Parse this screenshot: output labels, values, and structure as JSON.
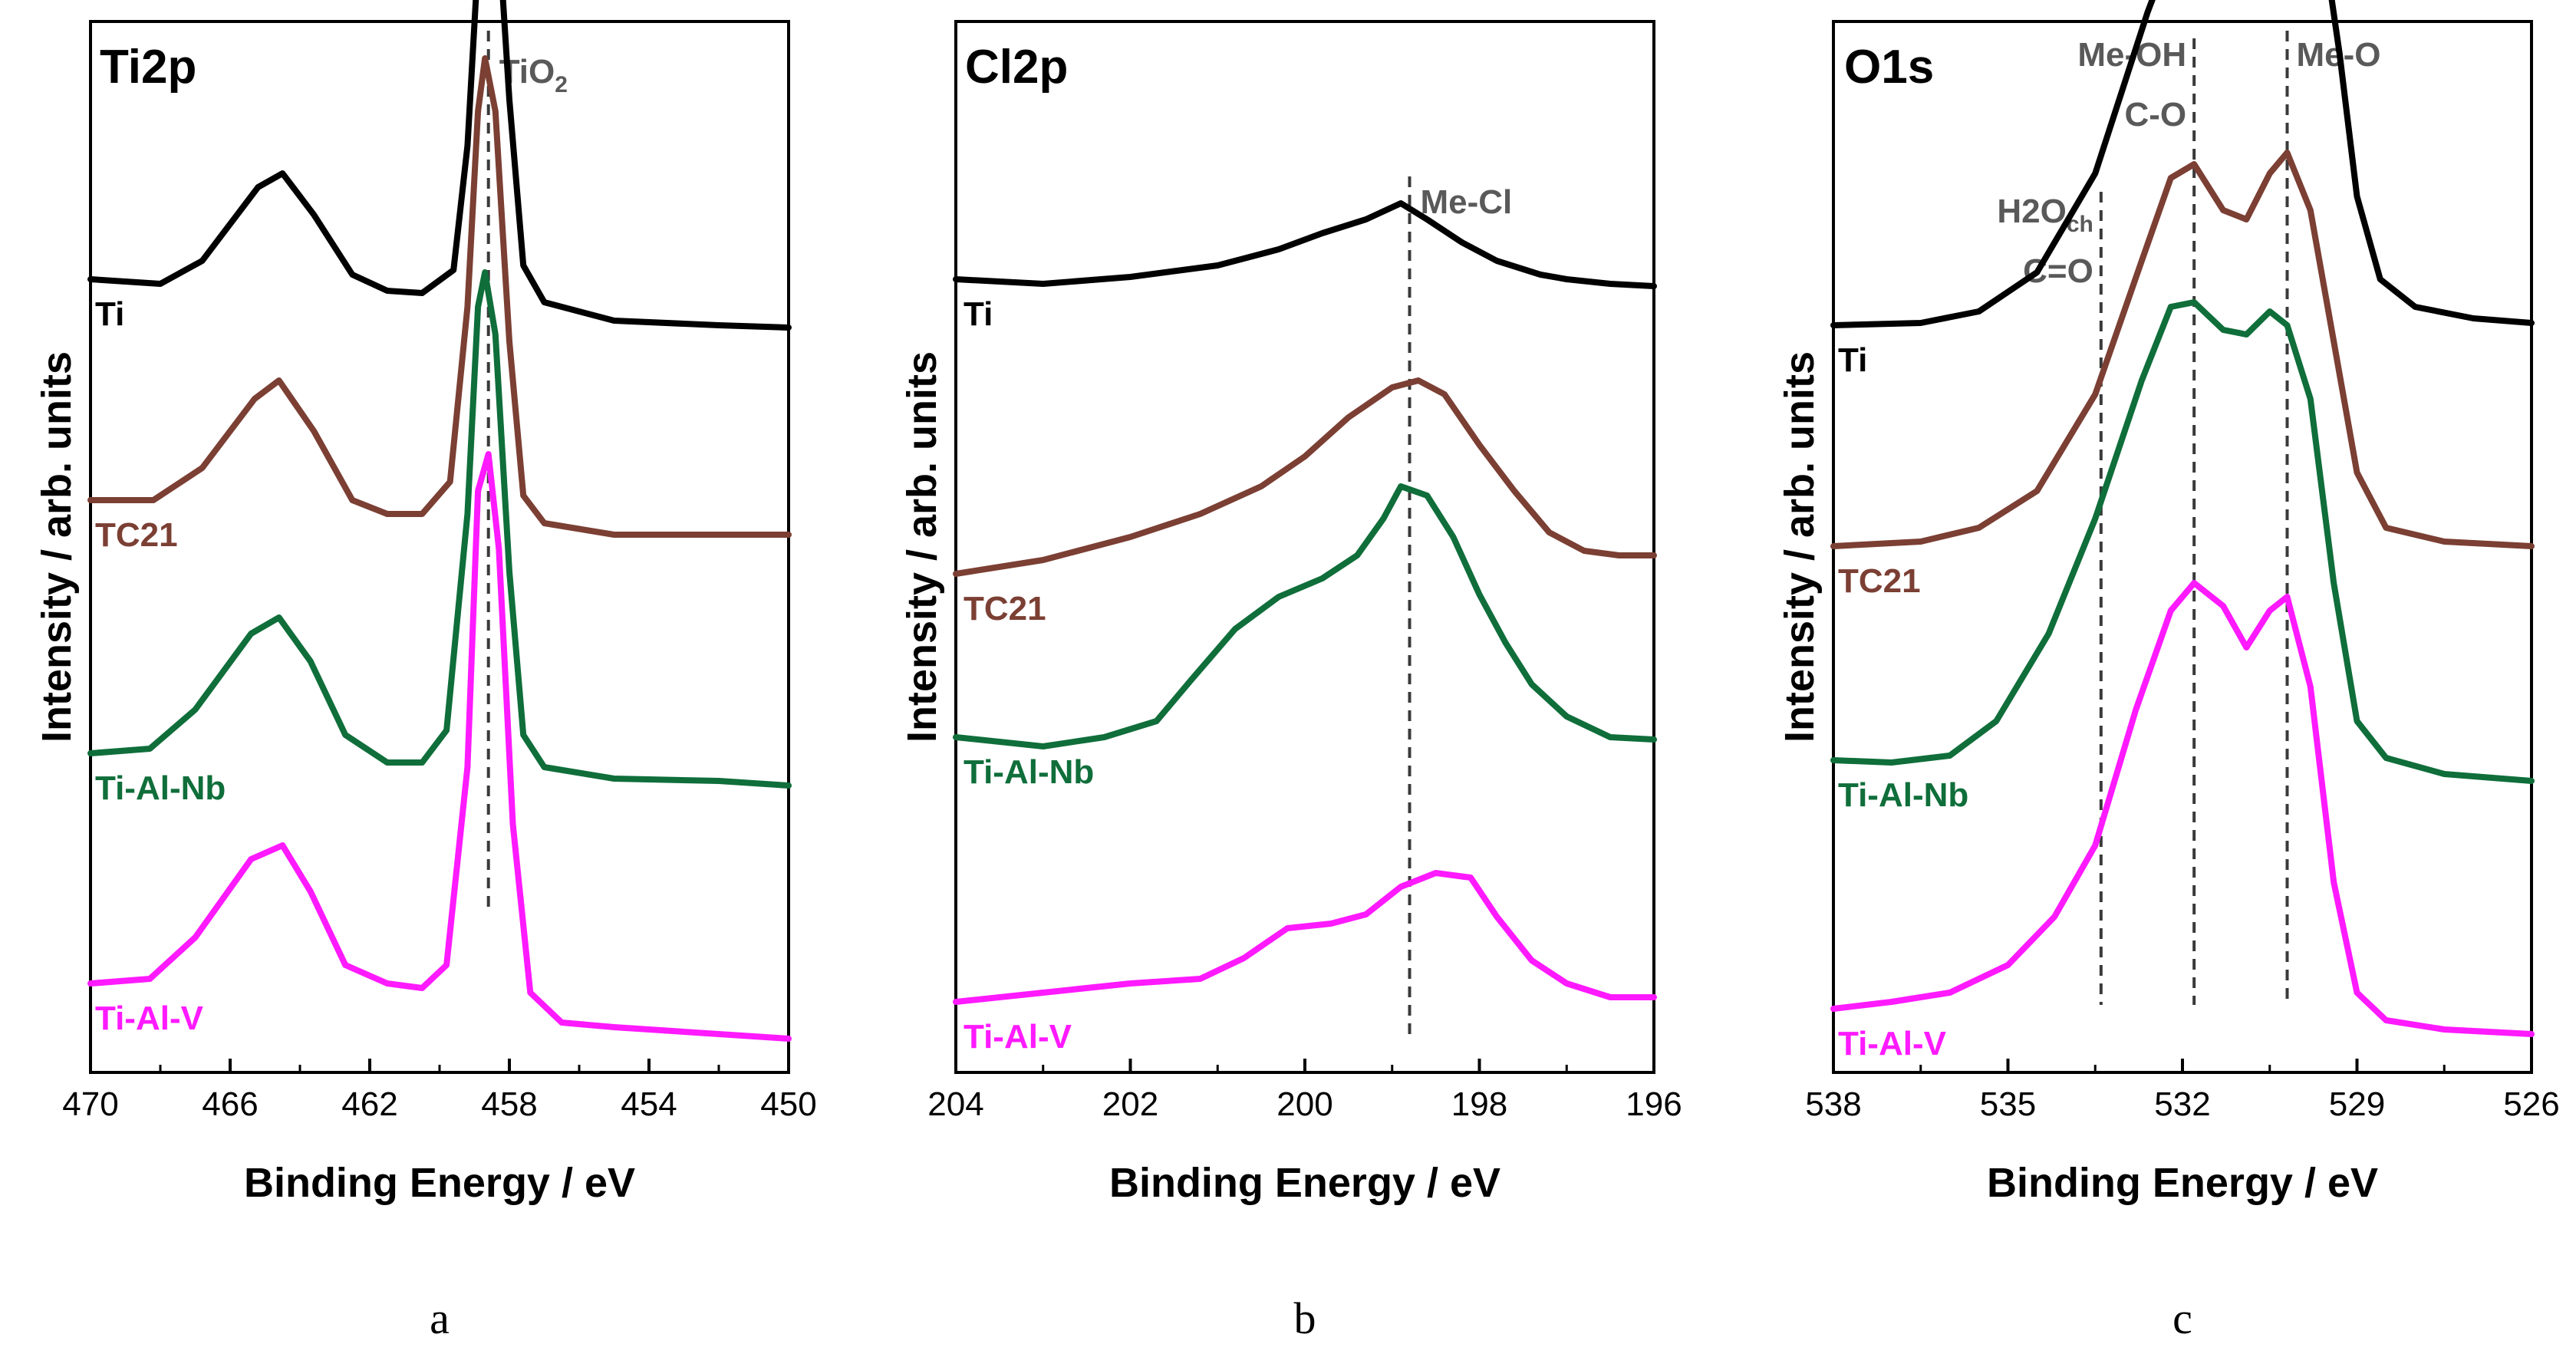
{
  "colors": {
    "Ti": "#000000",
    "TC21": "#7b3f33",
    "Ti-Al-Nb": "#0f6e3a",
    "Ti-Al-V": "#ff1aff",
    "reference_line": "#3a3a3a",
    "reference_text": "#595959"
  },
  "chart_data": [
    {
      "type": "line",
      "title": "Ti2p",
      "xlabel": "Binding Energy / eV",
      "ylabel": "Intensity / arb. units",
      "xlim": [
        470,
        450
      ],
      "x_reversed": true,
      "xticks": [
        "470",
        "466",
        "462",
        "458",
        "454",
        "450"
      ],
      "y_ticks_shown": false,
      "caption": "a",
      "references": [
        {
          "x": 458.6,
          "label": "TiO",
          "sub": "2"
        }
      ],
      "series": [
        {
          "name": "Ti",
          "offset": 3.0,
          "points": [
            [
              470,
              0.32
            ],
            [
              468,
              0.3
            ],
            [
              466.8,
              0.4
            ],
            [
              465.2,
              0.72
            ],
            [
              464.5,
              0.78
            ],
            [
              463.6,
              0.6
            ],
            [
              462.5,
              0.34
            ],
            [
              461.5,
              0.27
            ],
            [
              460.5,
              0.26
            ],
            [
              459.6,
              0.36
            ],
            [
              459.2,
              0.9
            ],
            [
              458.9,
              1.7
            ],
            [
              458.7,
              2.22
            ],
            [
              458.4,
              2.05
            ],
            [
              458.0,
              1.1
            ],
            [
              457.6,
              0.38
            ],
            [
              457.0,
              0.22
            ],
            [
              455,
              0.14
            ],
            [
              452,
              0.12
            ],
            [
              450,
              0.11
            ]
          ]
        },
        {
          "name": "TC21",
          "offset": 2.0,
          "points": [
            [
              470,
              0.36
            ],
            [
              468.2,
              0.36
            ],
            [
              466.8,
              0.5
            ],
            [
              465.3,
              0.8
            ],
            [
              464.6,
              0.88
            ],
            [
              463.6,
              0.66
            ],
            [
              462.5,
              0.36
            ],
            [
              461.5,
              0.3
            ],
            [
              460.5,
              0.3
            ],
            [
              459.7,
              0.44
            ],
            [
              459.2,
              1.2
            ],
            [
              458.9,
              2.05
            ],
            [
              458.7,
              2.28
            ],
            [
              458.4,
              2.05
            ],
            [
              458.0,
              1.05
            ],
            [
              457.6,
              0.38
            ],
            [
              457.0,
              0.26
            ],
            [
              455,
              0.21
            ],
            [
              452,
              0.21
            ],
            [
              450,
              0.21
            ]
          ]
        },
        {
          "name": "Ti-Al-Nb",
          "offset": 1.0,
          "points": [
            [
              470,
              0.26
            ],
            [
              468.3,
              0.28
            ],
            [
              467.0,
              0.45
            ],
            [
              465.4,
              0.78
            ],
            [
              464.6,
              0.85
            ],
            [
              463.7,
              0.66
            ],
            [
              462.7,
              0.34
            ],
            [
              461.5,
              0.22
            ],
            [
              460.5,
              0.22
            ],
            [
              459.8,
              0.36
            ],
            [
              459.2,
              1.3
            ],
            [
              458.9,
              2.2
            ],
            [
              458.7,
              2.35
            ],
            [
              458.4,
              2.08
            ],
            [
              458.0,
              1.05
            ],
            [
              457.6,
              0.34
            ],
            [
              457.0,
              0.2
            ],
            [
              455,
              0.15
            ],
            [
              452,
              0.14
            ],
            [
              450,
              0.12
            ]
          ]
        },
        {
          "name": "Ti-Al-V",
          "offset": 0.0,
          "points": [
            [
              470,
              0.26
            ],
            [
              468.3,
              0.28
            ],
            [
              467.0,
              0.46
            ],
            [
              465.4,
              0.8
            ],
            [
              464.5,
              0.86
            ],
            [
              463.7,
              0.66
            ],
            [
              462.7,
              0.34
            ],
            [
              461.5,
              0.26
            ],
            [
              460.5,
              0.24
            ],
            [
              459.8,
              0.34
            ],
            [
              459.2,
              1.2
            ],
            [
              458.9,
              2.4
            ],
            [
              458.6,
              2.56
            ],
            [
              458.3,
              2.15
            ],
            [
              457.9,
              0.95
            ],
            [
              457.4,
              0.22
            ],
            [
              456.5,
              0.09
            ],
            [
              455,
              0.07
            ],
            [
              452,
              0.04
            ],
            [
              450,
              0.02
            ]
          ]
        }
      ]
    },
    {
      "type": "line",
      "title": "Cl2p",
      "xlabel": "Binding Energy / eV",
      "ylabel": "Intensity / arb. units",
      "xlim": [
        204,
        196
      ],
      "x_reversed": true,
      "xticks": [
        "204",
        "202",
        "200",
        "198",
        "196"
      ],
      "y_ticks_shown": false,
      "caption": "b",
      "references": [
        {
          "x": 198.8,
          "label": "Me-Cl",
          "sub": ""
        }
      ],
      "series": [
        {
          "name": "Ti",
          "offset": 3.0,
          "points": [
            [
              204,
              0.32
            ],
            [
              203,
              0.3
            ],
            [
              202,
              0.33
            ],
            [
              201,
              0.38
            ],
            [
              200.3,
              0.45
            ],
            [
              199.8,
              0.52
            ],
            [
              199.3,
              0.58
            ],
            [
              198.9,
              0.65
            ],
            [
              198.6,
              0.58
            ],
            [
              198.2,
              0.48
            ],
            [
              197.8,
              0.4
            ],
            [
              197.3,
              0.34
            ],
            [
              197,
              0.32
            ],
            [
              196.5,
              0.3
            ],
            [
              196,
              0.29
            ]
          ]
        },
        {
          "name": "TC21",
          "offset": 2.0,
          "points": [
            [
              204,
              0.04
            ],
            [
              203,
              0.1
            ],
            [
              202,
              0.2
            ],
            [
              201.2,
              0.3
            ],
            [
              200.5,
              0.42
            ],
            [
              200,
              0.55
            ],
            [
              199.5,
              0.72
            ],
            [
              199.0,
              0.85
            ],
            [
              198.7,
              0.88
            ],
            [
              198.4,
              0.82
            ],
            [
              198.0,
              0.6
            ],
            [
              197.6,
              0.4
            ],
            [
              197.2,
              0.22
            ],
            [
              196.8,
              0.14
            ],
            [
              196.4,
              0.12
            ],
            [
              196,
              0.12
            ]
          ]
        },
        {
          "name": "Ti-Al-Nb",
          "offset": 1.0,
          "points": [
            [
              204,
              0.33
            ],
            [
              203,
              0.29
            ],
            [
              202.3,
              0.33
            ],
            [
              201.7,
              0.4
            ],
            [
              201.3,
              0.58
            ],
            [
              200.8,
              0.8
            ],
            [
              200.3,
              0.94
            ],
            [
              199.8,
              1.02
            ],
            [
              199.4,
              1.12
            ],
            [
              199.1,
              1.28
            ],
            [
              198.9,
              1.42
            ],
            [
              198.6,
              1.38
            ],
            [
              198.3,
              1.2
            ],
            [
              198.0,
              0.95
            ],
            [
              197.7,
              0.74
            ],
            [
              197.4,
              0.56
            ],
            [
              197.0,
              0.42
            ],
            [
              196.5,
              0.33
            ],
            [
              196,
              0.32
            ]
          ]
        },
        {
          "name": "Ti-Al-V",
          "offset": 0.0,
          "points": [
            [
              204,
              0.18
            ],
            [
              203,
              0.22
            ],
            [
              202,
              0.26
            ],
            [
              201.2,
              0.28
            ],
            [
              200.7,
              0.37
            ],
            [
              200.2,
              0.5
            ],
            [
              199.7,
              0.52
            ],
            [
              199.3,
              0.56
            ],
            [
              198.9,
              0.68
            ],
            [
              198.5,
              0.74
            ],
            [
              198.1,
              0.72
            ],
            [
              197.8,
              0.55
            ],
            [
              197.4,
              0.36
            ],
            [
              197.0,
              0.26
            ],
            [
              196.5,
              0.2
            ],
            [
              196,
              0.2
            ]
          ]
        }
      ]
    },
    {
      "type": "line",
      "title": "O1s",
      "xlabel": "Binding Energy / eV",
      "ylabel": "Intensity / arb. units",
      "xlim": [
        538,
        526
      ],
      "x_reversed": true,
      "xticks": [
        "538",
        "535",
        "532",
        "529",
        "526"
      ],
      "y_ticks_shown": false,
      "caption": "c",
      "references": [
        {
          "x": 533.4,
          "label": "H2O",
          "sub": "ch",
          "label2": "C=O"
        },
        {
          "x": 531.8,
          "label": "Me-OH",
          "sub": "",
          "label2": "C-O"
        },
        {
          "x": 530.2,
          "label": "Me-O",
          "sub": ""
        }
      ],
      "series": [
        {
          "name": "Ti",
          "offset": 3.0,
          "points": [
            [
              538,
              0.12
            ],
            [
              536.5,
              0.13
            ],
            [
              535.5,
              0.18
            ],
            [
              534.5,
              0.35
            ],
            [
              533.5,
              0.78
            ],
            [
              532.6,
              1.48
            ],
            [
              532.0,
              1.88
            ],
            [
              531.4,
              2.05
            ],
            [
              531.0,
              2.0
            ],
            [
              530.5,
              2.18
            ],
            [
              530.1,
              2.32
            ],
            [
              529.7,
              2.0
            ],
            [
              529.3,
              1.3
            ],
            [
              529.0,
              0.68
            ],
            [
              528.6,
              0.32
            ],
            [
              528.0,
              0.2
            ],
            [
              527,
              0.15
            ],
            [
              526,
              0.13
            ]
          ]
        },
        {
          "name": "TC21",
          "offset": 2.0,
          "points": [
            [
              538,
              0.16
            ],
            [
              536.5,
              0.18
            ],
            [
              535.5,
              0.24
            ],
            [
              534.5,
              0.4
            ],
            [
              533.5,
              0.82
            ],
            [
              532.7,
              1.4
            ],
            [
              532.2,
              1.76
            ],
            [
              531.8,
              1.82
            ],
            [
              531.3,
              1.62
            ],
            [
              530.9,
              1.58
            ],
            [
              530.5,
              1.78
            ],
            [
              530.2,
              1.87
            ],
            [
              529.8,
              1.62
            ],
            [
              529.4,
              1.05
            ],
            [
              529.0,
              0.48
            ],
            [
              528.5,
              0.24
            ],
            [
              527.5,
              0.18
            ],
            [
              526,
              0.16
            ]
          ]
        },
        {
          "name": "Ti-Al-Nb",
          "offset": 1.0,
          "points": [
            [
              538,
              0.23
            ],
            [
              537,
              0.22
            ],
            [
              536,
              0.25
            ],
            [
              535.2,
              0.4
            ],
            [
              534.3,
              0.78
            ],
            [
              533.5,
              1.28
            ],
            [
              532.7,
              1.88
            ],
            [
              532.2,
              2.2
            ],
            [
              531.8,
              2.22
            ],
            [
              531.3,
              2.1
            ],
            [
              530.9,
              2.08
            ],
            [
              530.5,
              2.18
            ],
            [
              530.2,
              2.12
            ],
            [
              529.8,
              1.8
            ],
            [
              529.4,
              1.0
            ],
            [
              529.0,
              0.4
            ],
            [
              528.5,
              0.24
            ],
            [
              527.5,
              0.17
            ],
            [
              526,
              0.14
            ]
          ]
        },
        {
          "name": "Ti-Al-V",
          "offset": 0.0,
          "points": [
            [
              538,
              0.15
            ],
            [
              537,
              0.18
            ],
            [
              536,
              0.22
            ],
            [
              535,
              0.34
            ],
            [
              534.2,
              0.55
            ],
            [
              533.5,
              0.86
            ],
            [
              532.8,
              1.45
            ],
            [
              532.2,
              1.88
            ],
            [
              531.8,
              2.0
            ],
            [
              531.3,
              1.9
            ],
            [
              530.9,
              1.72
            ],
            [
              530.5,
              1.88
            ],
            [
              530.2,
              1.94
            ],
            [
              529.8,
              1.55
            ],
            [
              529.4,
              0.7
            ],
            [
              529.0,
              0.22
            ],
            [
              528.5,
              0.1
            ],
            [
              527.5,
              0.06
            ],
            [
              526,
              0.04
            ]
          ]
        }
      ]
    }
  ]
}
